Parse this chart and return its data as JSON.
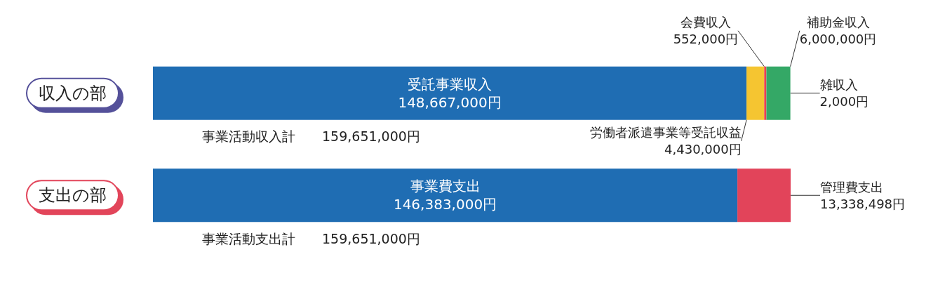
{
  "chart_data": {
    "type": "bar",
    "orientation": "horizontal",
    "stacked": true,
    "categories": [
      "収入の部",
      "支出の部"
    ],
    "series": [
      {
        "name": "受託事業収入",
        "color": "#1f6db3",
        "values": [
          148667000,
          null
        ],
        "value_labels": [
          "148,667,000円",
          null
        ]
      },
      {
        "name": "労働者派遣事業等受託収益",
        "color": "#f5c531",
        "values": [
          4430000,
          null
        ],
        "value_labels": [
          "4,430,000円",
          null
        ]
      },
      {
        "name": "会費収入",
        "color": "#e8414f",
        "values": [
          552000,
          null
        ],
        "value_labels": [
          "552,000円",
          null
        ]
      },
      {
        "name": "補助金収入",
        "color": "#34a866",
        "values": [
          6000000,
          null
        ],
        "value_labels": [
          "6,000,000円",
          null
        ]
      },
      {
        "name": "雑収入",
        "color": "#55519a",
        "values": [
          2000,
          null
        ],
        "value_labels": [
          "2,000円",
          null
        ]
      },
      {
        "name": "事業費支出",
        "color": "#1f6db3",
        "values": [
          null,
          146383000
        ],
        "value_labels": [
          null,
          "146,383,000円"
        ]
      },
      {
        "name": "管理費支出",
        "color": "#e2445a",
        "values": [
          null,
          13338498
        ],
        "value_labels": [
          null,
          "13,338,498円"
        ]
      }
    ],
    "totals": [
      "事業活動収入計　　159,651,000円",
      "事業活動支出計　　159,651,000円"
    ],
    "tick_labels": "y",
    "legend": false
  }
}
